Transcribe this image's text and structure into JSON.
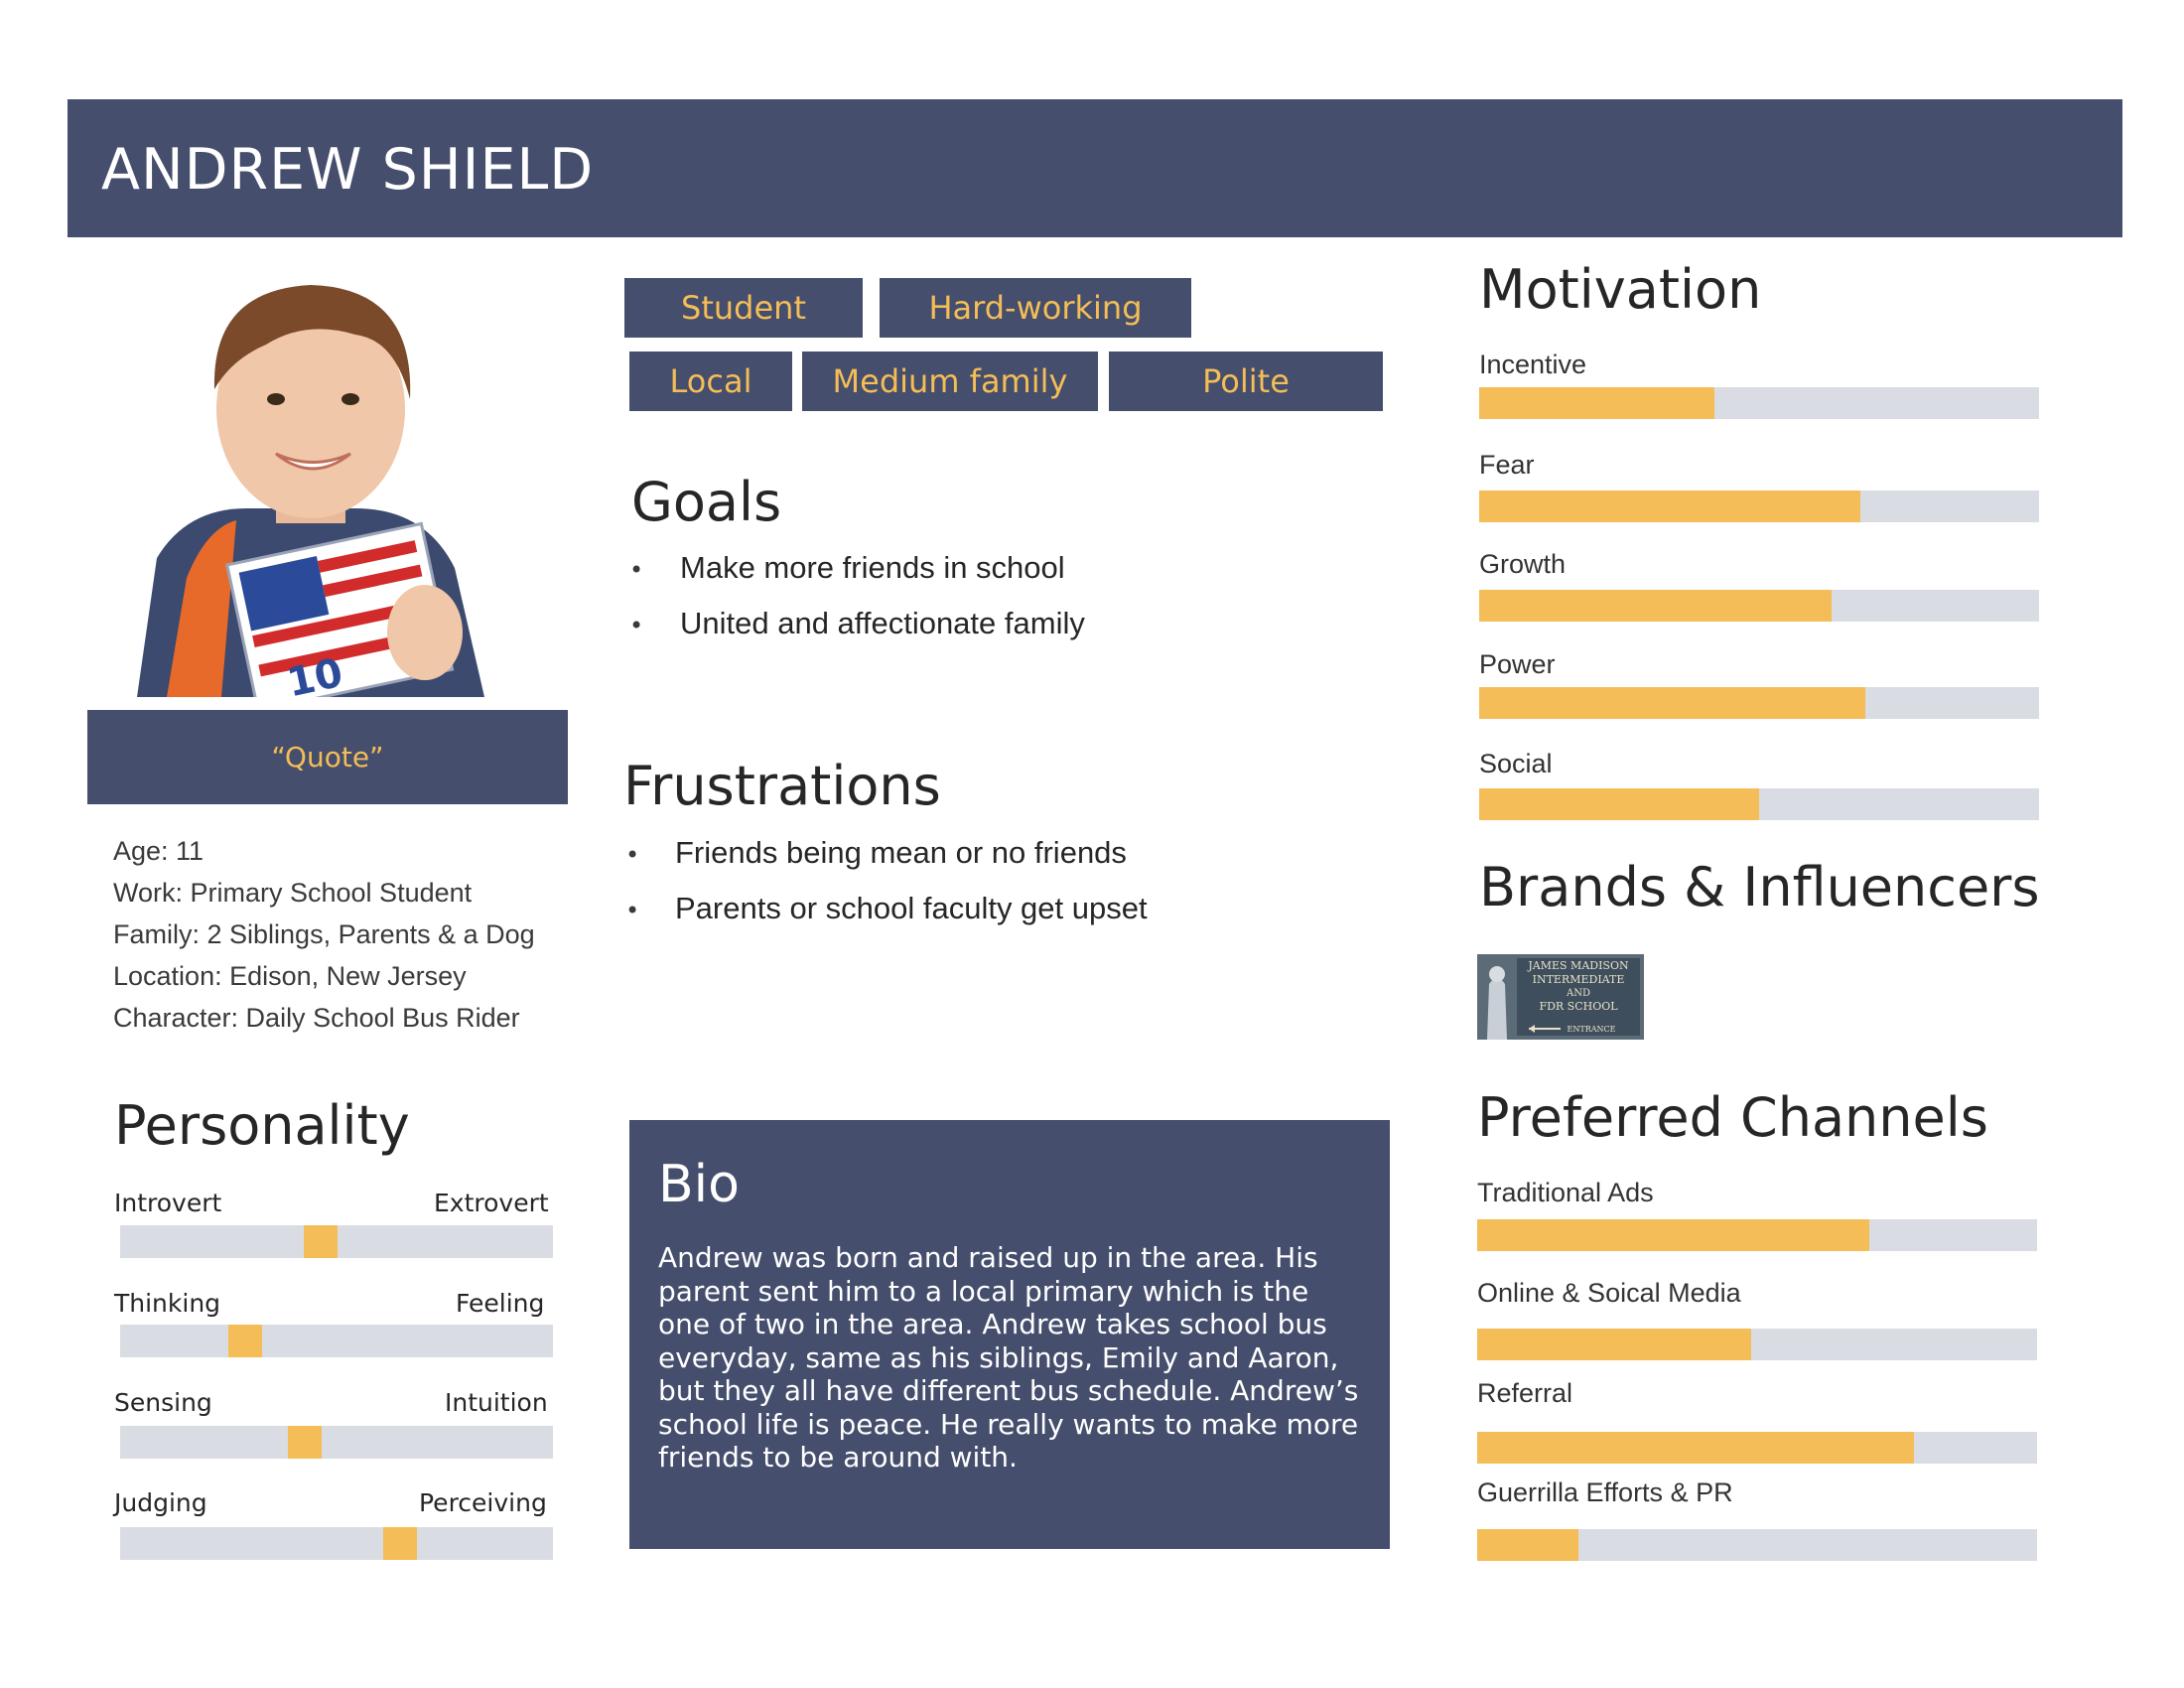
{
  "header": {
    "name": "ANDREW SHIELD"
  },
  "profile": {
    "photo_icon": "boy-holding-book-photo",
    "quote": "“Quote”",
    "info": [
      "Age:  11",
      "Work: Primary School Student",
      "Family:  2 Siblings, Parents & a Dog",
      "Location: Edison, New Jersey",
      "Character: Daily School Bus Rider"
    ]
  },
  "tags": [
    "Student",
    "Hard-working",
    "Local",
    "Medium family",
    "Polite"
  ],
  "goals": {
    "title": "Goals",
    "items": [
      "Make more friends in school",
      "United and affectionate family"
    ]
  },
  "frustrations": {
    "title": "Frustrations",
    "items": [
      "Friends being mean or no friends",
      "Parents or school faculty get upset"
    ]
  },
  "personality": {
    "title": "Personality",
    "traits": [
      {
        "left": "Introvert",
        "right": "Extrovert",
        "value": 0.46
      },
      {
        "left": "Thinking",
        "right": "Feeling",
        "value": 0.27
      },
      {
        "left": "Sensing",
        "right": "Intuition",
        "value": 0.42
      },
      {
        "left": "Judging",
        "right": "Perceiving",
        "value": 0.66
      }
    ]
  },
  "bio": {
    "title": "Bio",
    "text": "Andrew was born and raised up in the area. His parent sent him to a local primary which is the one of two in the area. Andrew takes school bus everyday, same as his siblings, Emily and Aaron, but they all have different bus schedule. Andrew’s school life is peace. He really wants to make more friends to be around with."
  },
  "motivation": {
    "title": "Motivation",
    "items": [
      {
        "label": "Incentive",
        "value": 0.42
      },
      {
        "label": "Fear",
        "value": 0.68
      },
      {
        "label": "Growth",
        "value": 0.63
      },
      {
        "label": "Power",
        "value": 0.69
      },
      {
        "label": "Social",
        "value": 0.5
      }
    ]
  },
  "brands": {
    "title": "Brands & Influencers",
    "sign_lines": [
      "JAMES MADISON",
      "INTERMEDIATE",
      "AND",
      "FDR SCHOOL",
      "ENTRANCE"
    ]
  },
  "channels": {
    "title": "Preferred Channels",
    "items": [
      {
        "label": "Traditional Ads",
        "value": 0.7
      },
      {
        "label": "Online & Soical Media",
        "value": 0.49
      },
      {
        "label": "Referral",
        "value": 0.78
      },
      {
        "label": "Guerrilla Efforts & PR",
        "value": 0.18
      }
    ]
  },
  "colors": {
    "navy": "#454e6c",
    "accent": "#f4bd57",
    "track": "#d9dde3"
  }
}
